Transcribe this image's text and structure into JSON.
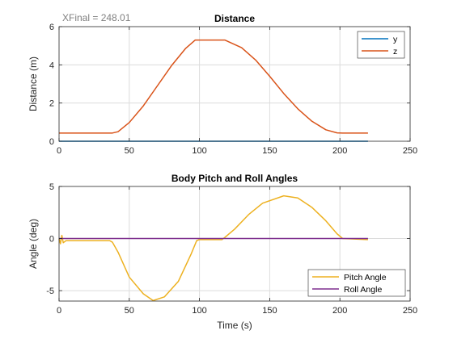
{
  "chart_data": [
    {
      "type": "line",
      "title": "Distance",
      "xlabel": "",
      "ylabel": "Distance (m)",
      "xlim": [
        0,
        250
      ],
      "ylim": [
        0,
        6
      ],
      "xticks": [
        "0",
        "50",
        "100",
        "150",
        "200",
        "250"
      ],
      "yticks": [
        "0",
        "2",
        "4",
        "6"
      ],
      "grid": true,
      "legend_position": "top-right",
      "annotation": "XFinal = 248.01",
      "series": [
        {
          "name": "y",
          "color": "#0072BD",
          "x": [
            0,
            220
          ],
          "y": [
            0,
            0
          ]
        },
        {
          "name": "z",
          "color": "#D95319",
          "x": [
            0,
            38,
            42,
            50,
            60,
            70,
            80,
            90,
            97,
            110,
            118,
            130,
            140,
            150,
            160,
            170,
            180,
            190,
            198,
            202,
            220
          ],
          "y": [
            0.43,
            0.43,
            0.5,
            0.98,
            1.85,
            2.9,
            3.95,
            4.85,
            5.3,
            5.3,
            5.3,
            4.9,
            4.25,
            3.4,
            2.5,
            1.7,
            1.05,
            0.6,
            0.44,
            0.43,
            0.43
          ]
        }
      ]
    },
    {
      "type": "line",
      "title": "Body Pitch and Roll Angles",
      "xlabel": "Time (s)",
      "ylabel": "Angle (deg)",
      "xlim": [
        0,
        250
      ],
      "ylim": [
        -6,
        5
      ],
      "xticks": [
        "0",
        "50",
        "100",
        "150",
        "200",
        "250"
      ],
      "yticks": [
        "-5",
        "0",
        "5"
      ],
      "ytick_values": [
        -5,
        0,
        5
      ],
      "grid": true,
      "legend_position": "bottom-right",
      "series": [
        {
          "name": "Pitch Angle",
          "color": "#EDB120",
          "x": [
            0,
            1,
            2,
            3,
            5,
            36,
            38,
            42,
            50,
            60,
            67,
            75,
            85,
            94,
            98,
            100,
            116,
            118,
            125,
            135,
            145,
            160,
            170,
            180,
            190,
            198,
            202,
            220
          ],
          "y": [
            0,
            -0.5,
            0.3,
            -0.4,
            -0.2,
            -0.2,
            -0.35,
            -1.3,
            -3.7,
            -5.3,
            -5.95,
            -5.6,
            -4.1,
            -1.5,
            -0.2,
            -0.1,
            -0.1,
            0.1,
            0.9,
            2.3,
            3.4,
            4.1,
            3.9,
            3.0,
            1.7,
            0.45,
            0.0,
            -0.1
          ]
        },
        {
          "name": "Roll Angle",
          "color": "#7E2F8E",
          "x": [
            0,
            220
          ],
          "y": [
            0,
            0
          ]
        }
      ]
    }
  ]
}
